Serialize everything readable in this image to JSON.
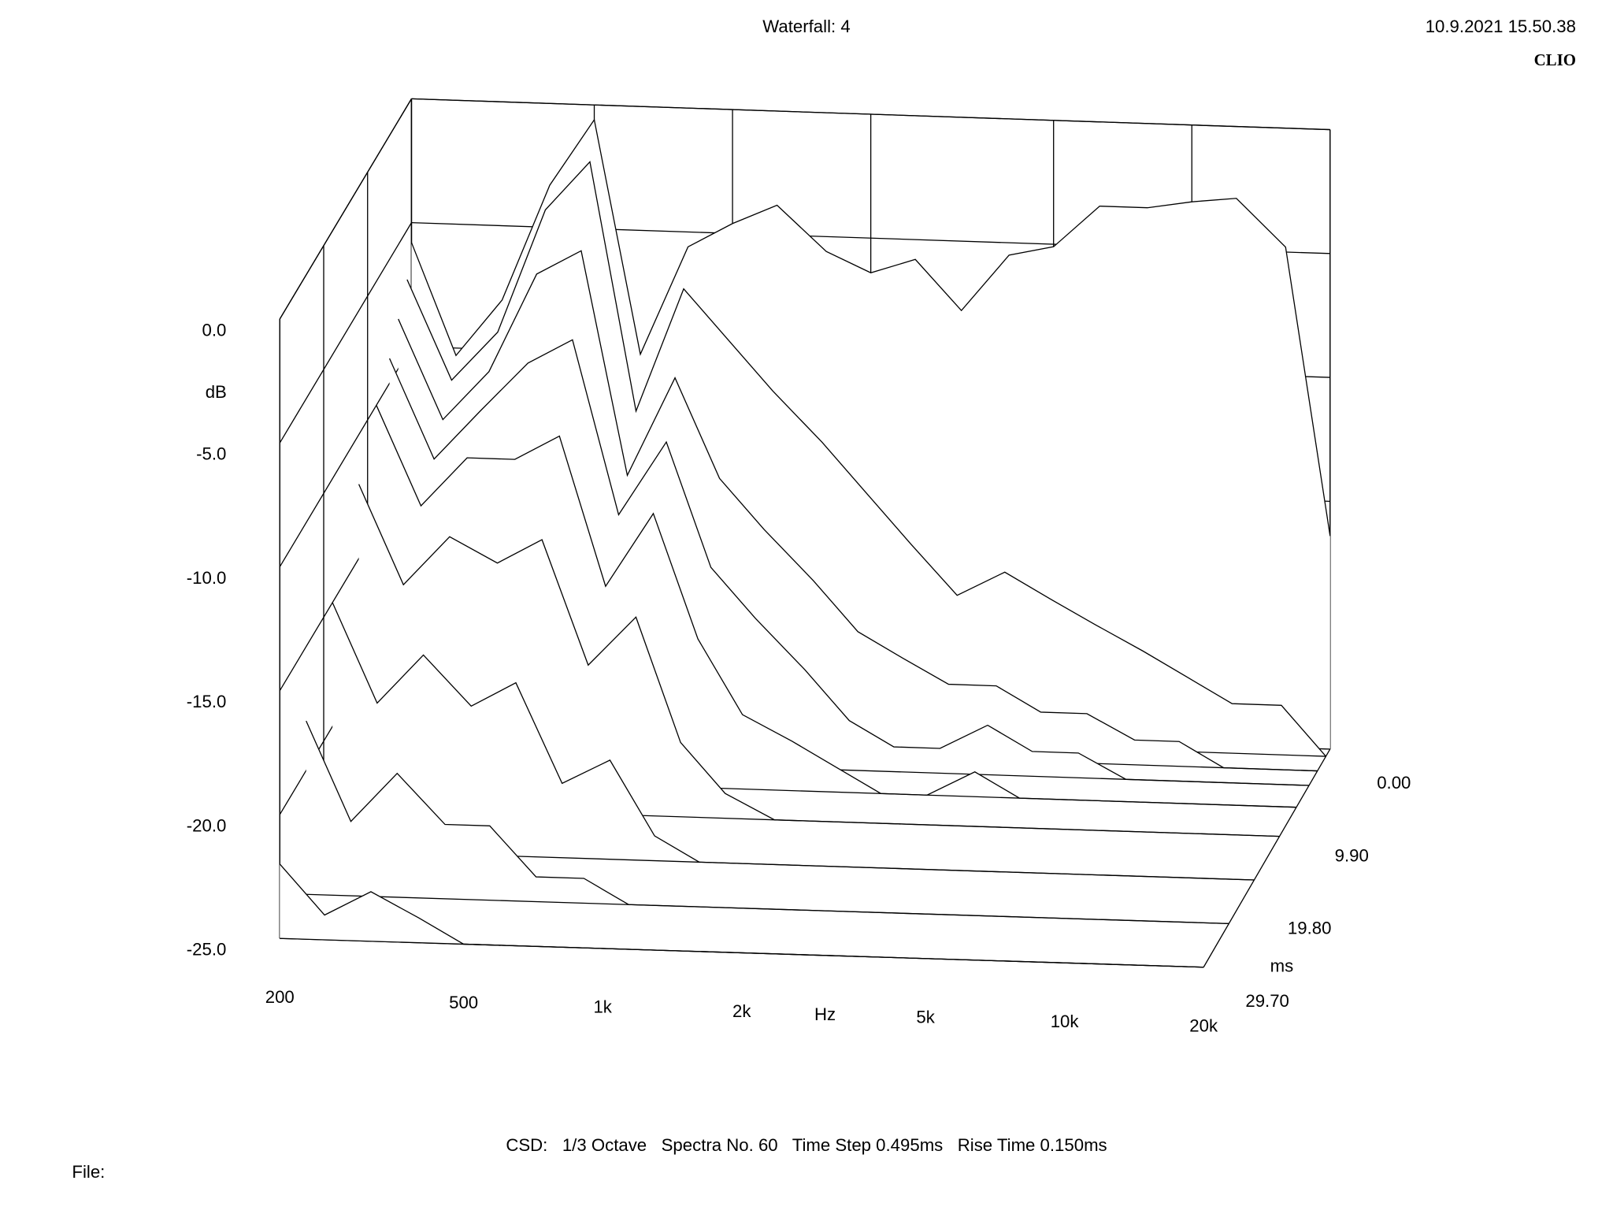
{
  "chart_data": {
    "type": "waterfall",
    "title": "Waterfall: 4",
    "timestamp": "10.9.2021 15.50.38",
    "brand": "CLIO",
    "footer": "CSD:   1/3 Octave   Spectra No. 60   Time Step 0.495ms   Rise Time 0.150ms",
    "file_label": "File:",
    "x_label": "Hz",
    "y_label": "dB",
    "t_label": "ms",
    "log_x": true,
    "xlim": [
      200,
      20000
    ],
    "xticks": [
      200,
      500,
      {
        "value": 1000,
        "label": "1k"
      },
      {
        "value": 2000,
        "label": "2k"
      },
      {
        "value": 5000,
        "label": "5k"
      },
      {
        "value": 10000,
        "label": "10k"
      },
      {
        "value": 20000,
        "label": "20k"
      }
    ],
    "ylim": [
      -25,
      0
    ],
    "yticks": [
      {
        "value": 0,
        "label": "0.0"
      },
      {
        "value": -5,
        "label": "-5.0"
      },
      {
        "value": -10,
        "label": "-10.0"
      },
      {
        "value": -15,
        "label": "-15.0"
      },
      {
        "value": -20,
        "label": "-20.0"
      },
      {
        "value": -25,
        "label": "-25.0"
      }
    ],
    "tlim": [
      0,
      29.7
    ],
    "tticks": [
      {
        "value": 0,
        "label": "0.00"
      },
      {
        "value": 9.9,
        "label": "9.90"
      },
      {
        "value": 19.8,
        "label": "19.80"
      },
      {
        "value": 29.7,
        "label": "29.70"
      }
    ],
    "color": "#000000",
    "x": [
      200,
      250,
      315,
      400,
      500,
      630,
      800,
      1000,
      1250,
      1600,
      2000,
      2500,
      3150,
      4000,
      5000,
      6300,
      8000,
      10000,
      12500,
      16000,
      20000
    ],
    "series": [
      {
        "t": 0,
        "values": [
          -5.8,
          -10.3,
          -8,
          -3.3,
          -0.6,
          -10,
          -5.6,
          -4.6,
          -3.8,
          -5.6,
          -6.4,
          -5.8,
          -7.8,
          -5.5,
          -5.1,
          -3.4,
          -3.4,
          -3.1,
          -2.9,
          -4.8,
          -16.4
        ]
      },
      {
        "t": 0.99,
        "values": [
          -7,
          -11,
          -9,
          -4,
          -2,
          -12,
          -7,
          -9,
          -11,
          -13,
          -15,
          -17,
          -19,
          -18,
          -19,
          -20,
          -21,
          -22,
          -23,
          -23,
          -25
        ]
      },
      {
        "t": 2.97,
        "values": [
          -8,
          -12,
          -10,
          -6,
          -5,
          -14,
          -10,
          -14,
          -16,
          -18,
          -20,
          -21,
          -22,
          -22,
          -23,
          -23,
          -24,
          -24,
          -25,
          -25,
          -25
        ]
      },
      {
        "t": 4.95,
        "values": [
          -9,
          -13,
          -11,
          -9,
          -8,
          -15,
          -12,
          -17,
          -19,
          -21,
          -23,
          -24,
          -24,
          -23,
          -24,
          -24,
          -25,
          -25,
          -25,
          -25,
          -25
        ]
      },
      {
        "t": 7.92,
        "values": [
          -10,
          -14,
          -12,
          -12,
          -11,
          -17,
          -14,
          -19,
          -22,
          -23,
          -24,
          -25,
          -25,
          -24,
          -25,
          -25,
          -25,
          -25,
          -25,
          -25,
          -25
        ]
      },
      {
        "t": 11.88,
        "values": [
          -12,
          -16,
          -14,
          -15,
          -14,
          -19,
          -17,
          -22,
          -24,
          -25,
          -25,
          -25,
          -25,
          -25,
          -25,
          -25,
          -25,
          -25,
          -25,
          -25,
          -25
        ]
      },
      {
        "t": 17.82,
        "values": [
          -15,
          -19,
          -17,
          -19,
          -18,
          -22,
          -21,
          -24,
          -25,
          -25,
          -25,
          -25,
          -25,
          -25,
          -25,
          -25,
          -25,
          -25,
          -25,
          -25,
          -25
        ]
      },
      {
        "t": 23.76,
        "values": [
          -18,
          -22,
          -20,
          -22,
          -22,
          -24,
          -24,
          -25,
          -25,
          -25,
          -25,
          -25,
          -25,
          -25,
          -25,
          -25,
          -25,
          -25,
          -25,
          -25,
          -25
        ]
      },
      {
        "t": 29.7,
        "values": [
          -22,
          -24,
          -23,
          -24,
          -25,
          -25,
          -25,
          -25,
          -25,
          -25,
          -25,
          -25,
          -25,
          -25,
          -25,
          -25,
          -25,
          -25,
          -25,
          -25,
          -25
        ]
      }
    ]
  }
}
